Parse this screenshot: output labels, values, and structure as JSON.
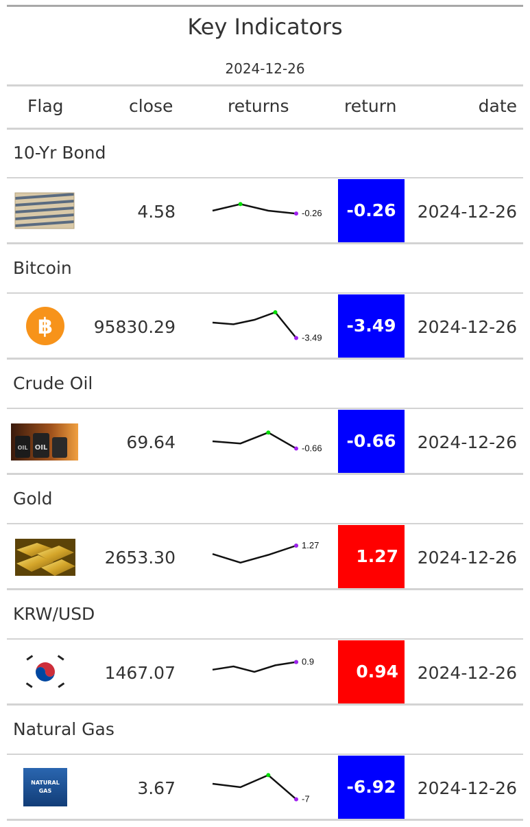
{
  "header": {
    "title": "Key Indicators",
    "subtitle": "2024-12-26"
  },
  "columns": {
    "flag": "Flag",
    "close": "close",
    "returns": "returns",
    "return": "return",
    "date": "date"
  },
  "colors": {
    "negative": "#0000ff",
    "positive": "#ff0000",
    "spark_max": "#00dd00",
    "spark_last": "#a020f0"
  },
  "rows": [
    {
      "group": "10-Yr Bond",
      "icon": "bond-certificate-icon",
      "close": "4.58",
      "spark_values": [
        0.0,
        0.6,
        0.0,
        -0.26
      ],
      "spark_label": "-0.26",
      "return": "-0.26",
      "sign": "neg",
      "date": "2024-12-26"
    },
    {
      "group": "Bitcoin",
      "icon": "bitcoin-icon",
      "close": "95830.29",
      "spark_values": [
        1.0,
        0.5,
        1.8,
        4.0,
        -3.49
      ],
      "spark_label": "-3.49",
      "return": "-3.49",
      "sign": "neg",
      "date": "2024-12-26"
    },
    {
      "group": "Crude Oil",
      "icon": "oil-barrels-icon",
      "close": "69.64",
      "spark_values": [
        0.0,
        -0.2,
        0.8,
        -0.66
      ],
      "spark_label": "-0.66",
      "return": "-0.66",
      "sign": "neg",
      "date": "2024-12-26"
    },
    {
      "group": "Gold",
      "icon": "gold-bars-icon",
      "close": "2653.30",
      "spark_values": [
        0.3,
        -0.7,
        0.2,
        1.27
      ],
      "spark_label": "1.27",
      "return": "1.27",
      "sign": "pos",
      "date": "2024-12-26"
    },
    {
      "group": "KRW/USD",
      "icon": "korea-flag-icon",
      "close": "1467.07",
      "spark_values": [
        0.2,
        0.5,
        0.0,
        0.6,
        0.9
      ],
      "spark_label": "0.9",
      "return": "0.94",
      "sign": "pos",
      "date": "2024-12-26"
    },
    {
      "group": "Natural Gas",
      "icon": "natural-gas-icon",
      "icon_text": [
        "NATURAL",
        "GAS"
      ],
      "close": "3.67",
      "spark_values": [
        2.0,
        0.0,
        7.0,
        -7.0
      ],
      "spark_label": "-7",
      "return": "-6.92",
      "sign": "neg",
      "date": "2024-12-26"
    }
  ]
}
